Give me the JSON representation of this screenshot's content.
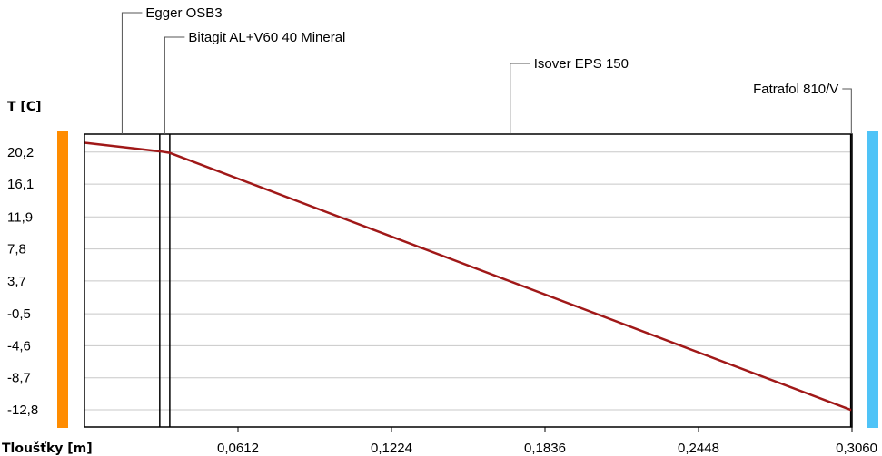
{
  "chart_data": {
    "type": "line",
    "ylabel": "T [C]",
    "xlabel": "Tloušťky [m]",
    "xlim": [
      0,
      0.306
    ],
    "ylim": [
      -15.0,
      22.5
    ],
    "y_ticks": [
      "20,2",
      "16,1",
      "11,9",
      "7,8",
      "3,7",
      "-0,5",
      "-4,6",
      "-8,7",
      "-12,8"
    ],
    "y_tick_values": [
      20.2,
      16.1,
      11.9,
      7.8,
      3.7,
      -0.5,
      -4.6,
      -8.7,
      -12.8
    ],
    "x_ticks": [
      "0,0612",
      "0,1224",
      "0,1836",
      "0,2448",
      "0,3060"
    ],
    "x_tick_values": [
      0.0612,
      0.1224,
      0.1836,
      0.2448,
      0.306
    ],
    "grid": true,
    "layers": [
      {
        "name": "Egger OSB3",
        "from": 0.0,
        "to": 0.03
      },
      {
        "name": "Bitagit AL+V60 40 Mineral",
        "from": 0.03,
        "to": 0.034
      },
      {
        "name": "Isover EPS 150",
        "from": 0.034,
        "to": 0.3055
      },
      {
        "name": "Fatrafol 810/V",
        "from": 0.3055,
        "to": 0.306
      }
    ],
    "series": [
      {
        "x": [
          0.0,
          0.03,
          0.034,
          0.3055,
          0.306
        ],
        "y": [
          21.4,
          20.3,
          20.1,
          -12.8,
          -12.8
        ]
      }
    ],
    "colors": {
      "line": "#a01818",
      "interior": "#ff8c00",
      "exterior": "#4fc3f7"
    }
  }
}
